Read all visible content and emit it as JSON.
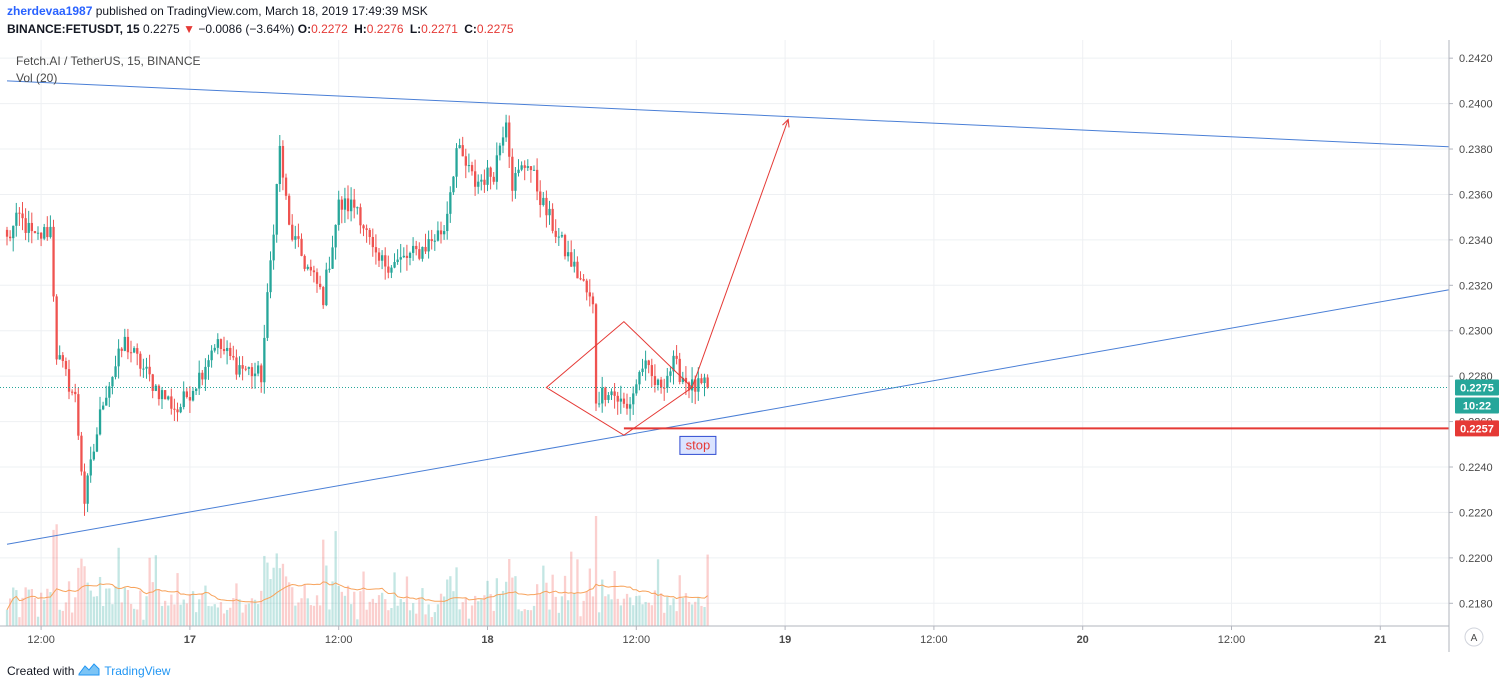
{
  "header": {
    "user": "zherdevaa1987",
    "published": "published on TradingView.com, March 18, 2019 17:49:39 MSK",
    "symbol": "BINANCE:FETUSDT, 15",
    "price": "0.2275",
    "change_arrow": "▼",
    "change": "−0.0086 (−3.64%)",
    "o_label": "O:",
    "o": "0.2272",
    "h_label": "H:",
    "h": "0.2276",
    "l_label": "L:",
    "l": "0.2271",
    "c_label": "C:",
    "c": "0.2275"
  },
  "legend": {
    "title": "Fetch.AI / TetherUS, 15, BINANCE",
    "volume": "Vol (20)"
  },
  "footer": {
    "created_with": "Created with",
    "brand": "TradingView"
  },
  "colors": {
    "up": "#26a69a",
    "down": "#ef5350",
    "trendline": "#4a7fd6",
    "drawing": "#e53935",
    "stop_line": "#e53935",
    "grid": "#eef0f3",
    "axis_text": "#4a4a4a"
  },
  "chart_data": {
    "type": "candlestick",
    "symbol": "FETUSDT",
    "interval": "15",
    "ylim": [
      0.217,
      0.2428
    ],
    "y_ticks": [
      "0.2180",
      "0.2200",
      "0.2220",
      "0.2240",
      "0.2260",
      "0.2280",
      "0.2300",
      "0.2320",
      "0.2340",
      "0.2360",
      "0.2380",
      "0.2400",
      "0.2420"
    ],
    "x_ticks": [
      {
        "label": "12:00",
        "bar": 11
      },
      {
        "label": "17",
        "bar": 59
      },
      {
        "label": "12:00",
        "bar": 107
      },
      {
        "label": "18",
        "bar": 155
      },
      {
        "label": "12:00",
        "bar": 203
      },
      {
        "label": "19",
        "bar": 251
      },
      {
        "label": "12:00",
        "bar": 299
      },
      {
        "label": "20",
        "bar": 347
      },
      {
        "label": "12:00",
        "bar": 395
      },
      {
        "label": "21",
        "bar": 443
      }
    ],
    "anchors": [
      [
        0,
        0.234
      ],
      [
        4,
        0.235
      ],
      [
        9,
        0.234
      ],
      [
        14,
        0.2345
      ],
      [
        16,
        0.229
      ],
      [
        22,
        0.227
      ],
      [
        25,
        0.2225
      ],
      [
        31,
        0.227
      ],
      [
        38,
        0.2295
      ],
      [
        43,
        0.2285
      ],
      [
        48,
        0.2275
      ],
      [
        55,
        0.2265
      ],
      [
        62,
        0.228
      ],
      [
        67,
        0.2295
      ],
      [
        74,
        0.2285
      ],
      [
        82,
        0.228
      ],
      [
        85,
        0.233
      ],
      [
        88,
        0.238
      ],
      [
        91,
        0.2345
      ],
      [
        96,
        0.233
      ],
      [
        102,
        0.2315
      ],
      [
        107,
        0.2355
      ],
      [
        113,
        0.2355
      ],
      [
        119,
        0.233
      ],
      [
        126,
        0.233
      ],
      [
        133,
        0.2335
      ],
      [
        141,
        0.2345
      ],
      [
        145,
        0.238
      ],
      [
        151,
        0.2365
      ],
      [
        157,
        0.237
      ],
      [
        161,
        0.2395
      ],
      [
        163,
        0.2365
      ],
      [
        168,
        0.2375
      ],
      [
        173,
        0.2355
      ],
      [
        180,
        0.2335
      ],
      [
        186,
        0.232
      ],
      [
        189,
        0.231
      ],
      [
        190,
        0.227
      ],
      [
        194,
        0.2275
      ],
      [
        200,
        0.2265
      ],
      [
        205,
        0.2285
      ],
      [
        210,
        0.2275
      ],
      [
        215,
        0.2285
      ],
      [
        221,
        0.2275
      ],
      [
        226,
        0.2275
      ]
    ],
    "last_bar": 226,
    "last_price": "0.2275",
    "countdown": "10:22",
    "stop_price": "0.2257",
    "stop_label": "stop",
    "volume_ma_period": 20,
    "trendlines": [
      {
        "from": [
          0,
          0.241
        ],
        "to": [
          465,
          0.2381
        ]
      },
      {
        "from": [
          0,
          0.2206
        ],
        "to": [
          465,
          0.2318
        ]
      }
    ],
    "diamond": [
      [
        174,
        0.2275
      ],
      [
        199,
        0.2304
      ],
      [
        221,
        0.2275
      ],
      [
        199,
        0.2254
      ]
    ],
    "arrow": {
      "from": [
        221,
        0.2275
      ],
      "to": [
        252,
        0.2393
      ]
    }
  }
}
